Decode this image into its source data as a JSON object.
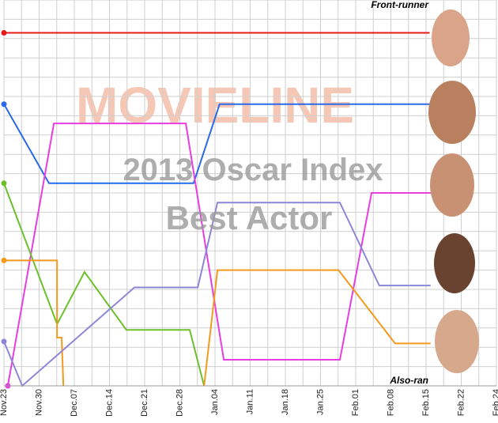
{
  "chart_data": {
    "type": "line",
    "title": "2013 Oscar Index",
    "subtitle": "Best Actor",
    "watermark": "MOVIELINE",
    "annotations": [
      "Front-runner",
      "Also-ran"
    ],
    "xlim": [
      0,
      14
    ],
    "ylim": [
      0,
      20
    ],
    "grid": true,
    "xticks": [
      {
        "value": 0,
        "label": "Nov.23"
      },
      {
        "value": 1,
        "label": "Nov.30"
      },
      {
        "value": 2,
        "label": "Dec.07"
      },
      {
        "value": 3,
        "label": "Dec.14"
      },
      {
        "value": 4,
        "label": "Dec.21"
      },
      {
        "value": 5,
        "label": "Dec.28"
      },
      {
        "value": 6,
        "label": "Jan.04"
      },
      {
        "value": 7,
        "label": "Jan.11"
      },
      {
        "value": 8,
        "label": "Jan.18"
      },
      {
        "value": 9,
        "label": "Jan.25"
      },
      {
        "value": 10,
        "label": "Feb.01"
      },
      {
        "value": 11,
        "label": "Feb.08"
      },
      {
        "value": 12,
        "label": "Feb.15"
      },
      {
        "value": 13,
        "label": "Feb.22"
      },
      {
        "value": 14,
        "label": "Feb.24"
      }
    ],
    "series": [
      {
        "color": "#e8191b",
        "x": [
          0,
          12.1
        ],
        "values": [
          18.3,
          18.3
        ]
      },
      {
        "color": "#2a6ae8",
        "x": [
          0,
          1.28,
          5.39,
          6.13,
          12.13
        ],
        "values": [
          14.6,
          10.5,
          10.5,
          14.6,
          14.6
        ]
      },
      {
        "color": "#e83ee0",
        "x": [
          0.11,
          1.42,
          5.17,
          6.25,
          9.55,
          10.45,
          12.13
        ],
        "values": [
          0,
          13.6,
          13.6,
          1.35,
          1.35,
          10,
          10
        ]
      },
      {
        "color": "#6cc02a",
        "x": [
          0,
          1.51,
          2.29,
          3.48,
          5.28,
          5.69
        ],
        "values": [
          10.5,
          3.2,
          5.9,
          2.9,
          2.9,
          0
        ]
      },
      {
        "color": "#f39a1e",
        "x": [
          0,
          1.51,
          1.51,
          1.64,
          1.69,
          null,
          5.69,
          6.07,
          9.51,
          11.12,
          12.13
        ],
        "values": [
          6.5,
          6.5,
          2.5,
          2.5,
          0,
          null,
          0,
          6,
          6,
          2.2,
          2.2
        ]
      },
      {
        "color": "#8c86d8",
        "x": [
          0,
          0.52,
          3.71,
          5.51,
          6.07,
          9.55,
          10.67,
          12.13
        ],
        "values": [
          2.3,
          0,
          5.1,
          5.1,
          9.5,
          9.5,
          5.2,
          5.2
        ]
      }
    ]
  }
}
